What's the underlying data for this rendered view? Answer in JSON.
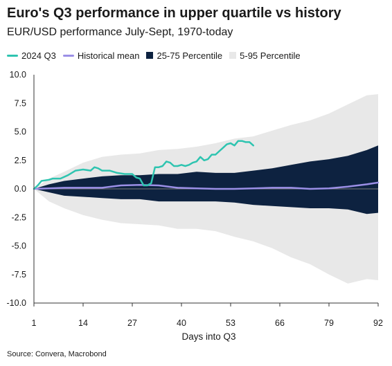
{
  "title": "Euro's Q3 performance in upper quartile vs history",
  "subtitle": "EUR/USD performance July-Sept, 1970-today",
  "source": "Source: Convera, Macrobond",
  "colors": {
    "spot": "#2ec4b0",
    "mean": "#9b8fe6",
    "iqr": "#0d2240",
    "p5_95": "#e8e8e8",
    "zero": "#7a7a7a"
  },
  "legend": [
    {
      "label": "2024 Q3",
      "kind": "line",
      "color": "#2ec4b0"
    },
    {
      "label": "Historical mean",
      "kind": "line",
      "color": "#9b8fe6"
    },
    {
      "label": "25-75 Percentile",
      "kind": "box",
      "color": "#0d2240"
    },
    {
      "label": "5-95 Percentile",
      "kind": "box",
      "color": "#e8e8e8"
    }
  ],
  "chart_data": {
    "type": "area",
    "title": "Euro's Q3 performance in upper quartile vs history",
    "xlabel": "Days into Q3",
    "ylabel": "",
    "xlim": [
      1,
      92
    ],
    "ylim": [
      -10,
      10
    ],
    "x_ticks": [
      1,
      14,
      27,
      40,
      53,
      66,
      79,
      92
    ],
    "y_ticks": [
      10.0,
      7.5,
      5.0,
      2.5,
      0.0,
      -2.5,
      -5.0,
      -7.5,
      -10.0
    ],
    "grid": false,
    "legend_position": "top-left",
    "x": [
      1,
      5,
      9,
      14,
      19,
      24,
      29,
      34,
      39,
      44,
      49,
      54,
      59,
      64,
      69,
      74,
      79,
      84,
      89,
      92
    ],
    "series": [
      {
        "name": "5-95 Percentile",
        "kind": "band",
        "upper": [
          0.0,
          0.9,
          1.5,
          2.3,
          2.8,
          3.0,
          3.1,
          3.4,
          3.5,
          3.7,
          4.0,
          4.4,
          4.6,
          5.1,
          5.6,
          6.0,
          6.6,
          7.4,
          8.2,
          8.3
        ],
        "lower": [
          0.0,
          -1.1,
          -1.7,
          -2.3,
          -2.7,
          -3.0,
          -3.1,
          -3.2,
          -3.5,
          -3.5,
          -3.7,
          -4.2,
          -4.6,
          -5.2,
          -6.0,
          -6.6,
          -7.5,
          -8.3,
          -7.9,
          -8.0
        ]
      },
      {
        "name": "25-75 Percentile",
        "kind": "band",
        "upper": [
          0.0,
          0.4,
          0.7,
          0.9,
          1.1,
          1.2,
          1.2,
          1.3,
          1.3,
          1.5,
          1.4,
          1.4,
          1.6,
          1.8,
          2.1,
          2.4,
          2.6,
          2.9,
          3.4,
          3.8
        ],
        "lower": [
          0.0,
          -0.3,
          -0.6,
          -0.7,
          -0.8,
          -0.9,
          -0.9,
          -1.1,
          -1.1,
          -1.1,
          -1.1,
          -1.2,
          -1.4,
          -1.5,
          -1.6,
          -1.7,
          -1.7,
          -1.8,
          -2.2,
          -2.1
        ]
      },
      {
        "name": "Historical mean",
        "kind": "line",
        "values": [
          0.0,
          0.05,
          0.1,
          0.1,
          0.1,
          0.3,
          0.35,
          0.3,
          0.1,
          0.05,
          0.0,
          0.0,
          0.05,
          0.1,
          0.1,
          0.0,
          0.05,
          0.2,
          0.4,
          0.55
        ]
      },
      {
        "name": "2024 Q3",
        "kind": "line",
        "x": [
          1,
          2,
          3,
          5,
          6,
          8,
          10,
          12,
          14,
          16,
          17,
          18,
          19,
          21,
          23,
          25,
          27,
          28,
          29,
          30,
          31,
          32,
          33,
          34,
          35,
          36,
          37,
          38,
          39,
          40,
          41,
          42,
          43,
          44,
          45,
          46,
          47,
          48,
          49,
          50,
          51,
          52,
          53,
          54,
          55,
          56,
          57,
          58,
          59
        ],
        "values": [
          0.0,
          0.3,
          0.7,
          0.8,
          0.9,
          0.9,
          1.2,
          1.6,
          1.7,
          1.6,
          1.9,
          1.8,
          1.6,
          1.6,
          1.4,
          1.3,
          1.3,
          1.0,
          0.9,
          0.3,
          0.3,
          0.5,
          1.9,
          1.9,
          2.0,
          2.4,
          2.3,
          2.0,
          2.0,
          2.1,
          2.0,
          2.1,
          2.3,
          2.4,
          2.8,
          2.5,
          2.6,
          3.0,
          3.0,
          3.3,
          3.6,
          3.9,
          4.0,
          3.8,
          4.2,
          4.2,
          4.1,
          4.1,
          3.8
        ]
      }
    ]
  }
}
